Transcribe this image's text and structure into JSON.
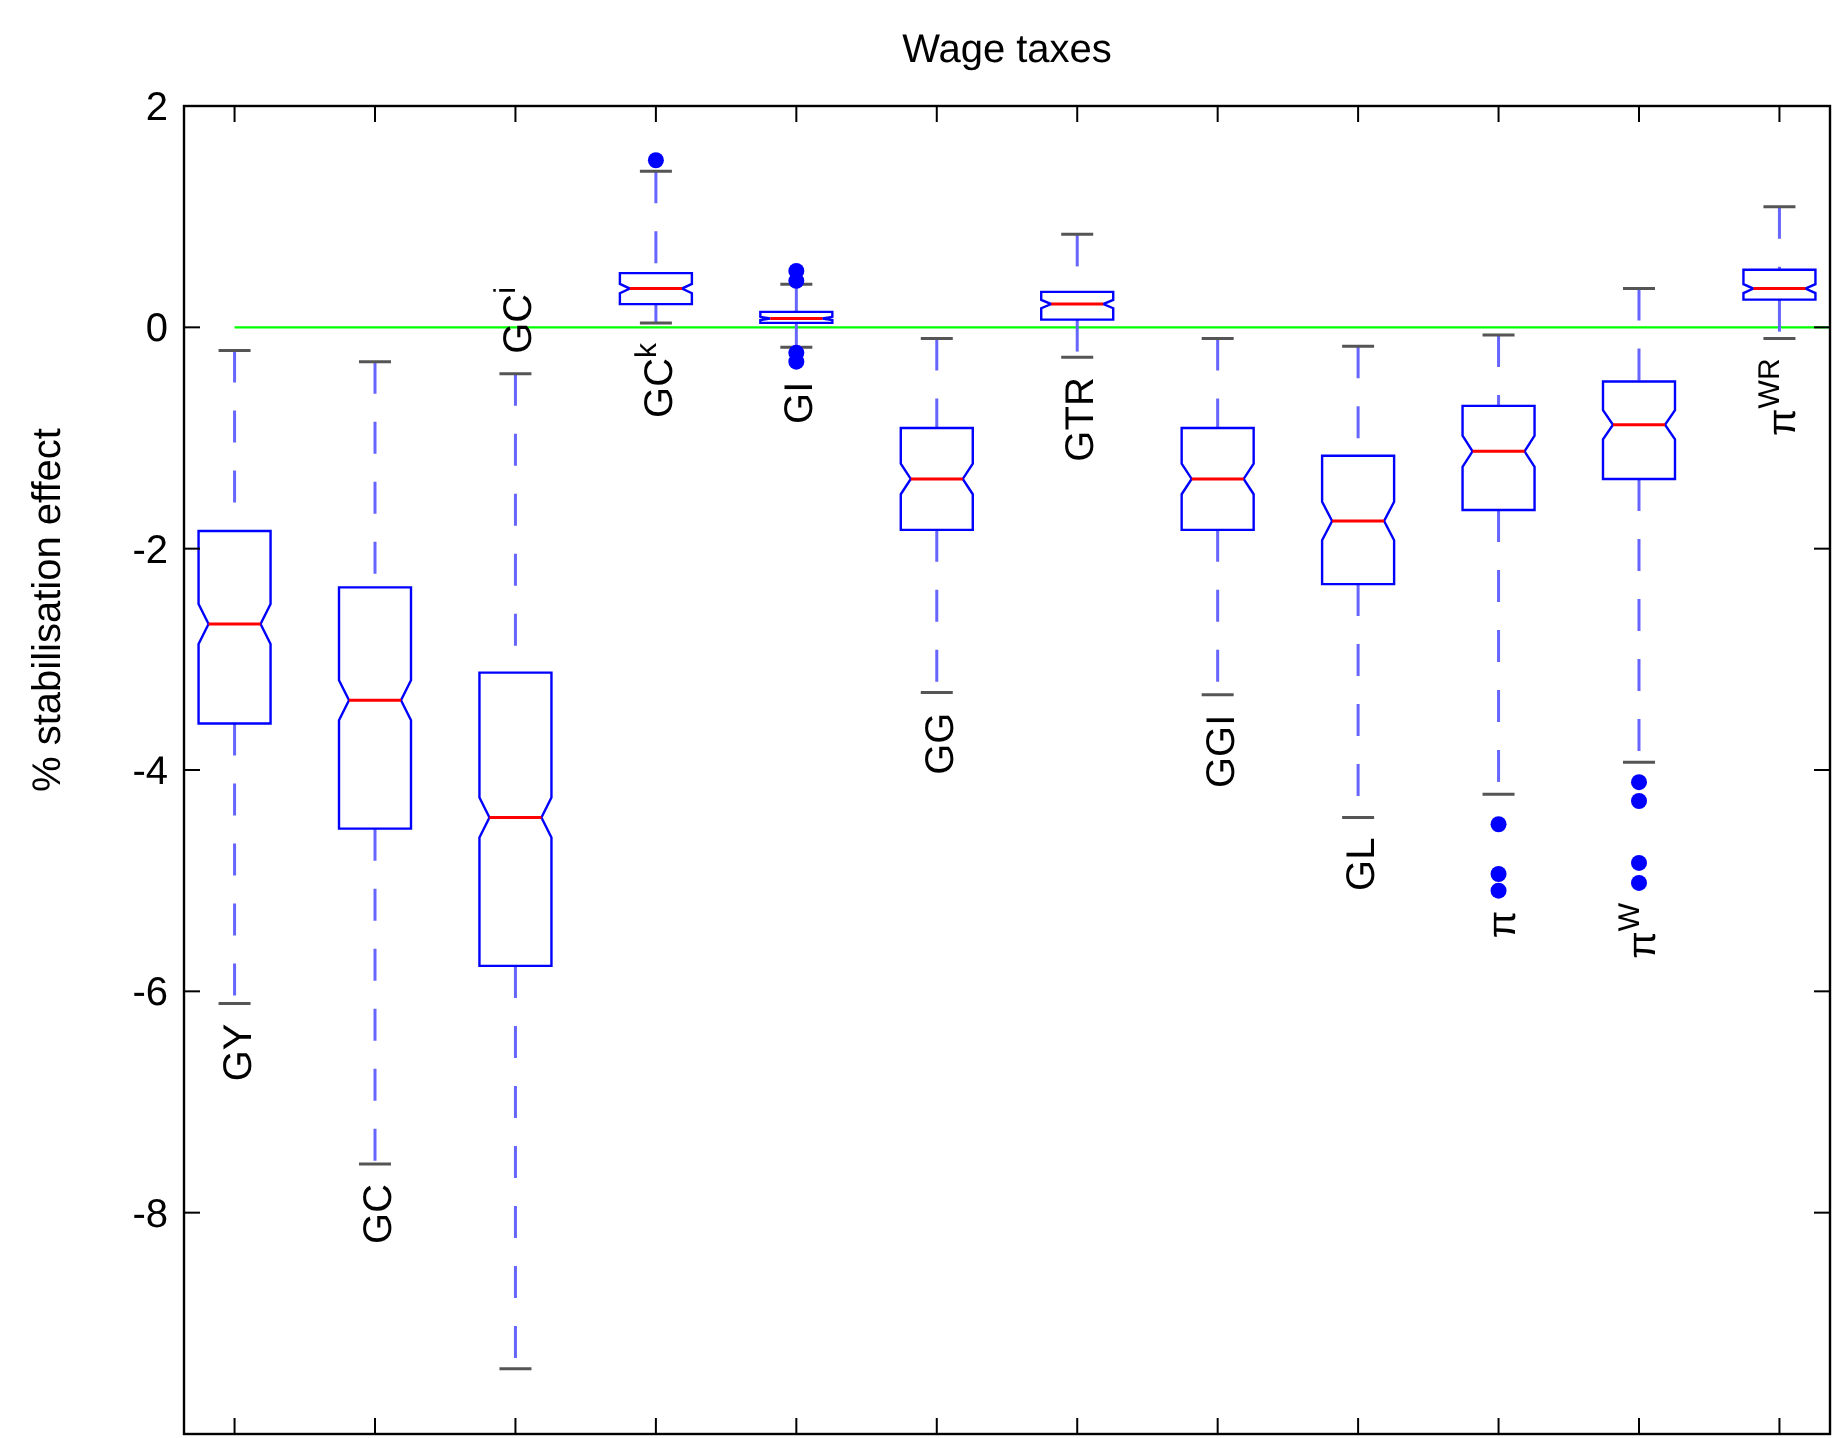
{
  "chart_data": {
    "type": "box",
    "title": "Wage taxes",
    "ylabel": "% stabilisation effect",
    "categories": [
      "GY",
      "GC",
      "GC$^{i}$",
      "GC$^{k}$",
      "GI",
      "GG",
      "GTR",
      "GGI",
      "GL",
      "π",
      "π$^{W}$",
      "π$^{WR}$"
    ],
    "boxes": [
      {
        "low": -6.11,
        "q1": -3.58,
        "median": -2.68,
        "q3": -1.84,
        "high": -0.21
      },
      {
        "low": -7.56,
        "q1": -4.53,
        "median": -3.37,
        "q3": -2.35,
        "high": -0.31
      },
      {
        "low": -9.41,
        "q1": -5.77,
        "median": -4.43,
        "q3": -3.12,
        "high": -0.42
      },
      {
        "low": 0.04,
        "q1": 0.21,
        "median": 0.35,
        "q3": 0.49,
        "high": 1.41,
        "outliers": [
          1.51
        ]
      },
      {
        "low": -0.18,
        "q1": 0.04,
        "median": 0.08,
        "q3": 0.14,
        "high": 0.39,
        "outliers": [
          0.51,
          0.42,
          -0.23,
          -0.31
        ]
      },
      {
        "low": -3.3,
        "q1": -1.83,
        "median": -1.37,
        "q3": -0.91,
        "high": -0.1
      },
      {
        "low": -0.27,
        "q1": 0.07,
        "median": 0.21,
        "q3": 0.32,
        "high": 0.84
      },
      {
        "low": -3.32,
        "q1": -1.83,
        "median": -1.37,
        "q3": -0.91,
        "high": -0.1
      },
      {
        "low": -4.43,
        "q1": -2.32,
        "median": -1.75,
        "q3": -1.16,
        "high": -0.17
      },
      {
        "low": -4.22,
        "q1": -1.65,
        "median": -1.12,
        "q3": -0.71,
        "high": -0.07,
        "outliers": [
          -4.49,
          -4.94,
          -5.09
        ]
      },
      {
        "low": -3.93,
        "q1": -1.37,
        "median": -0.88,
        "q3": -0.49,
        "high": 0.35,
        "outliers": [
          -4.11,
          -4.28,
          -4.84,
          -5.02
        ]
      },
      {
        "low": -0.1,
        "q1": 0.25,
        "median": 0.35,
        "q3": 0.52,
        "high": 1.09
      }
    ],
    "color": "#0000ff",
    "ylim": [
      -10,
      2
    ],
    "yticks": [
      2,
      0,
      -2,
      -4,
      -6,
      -8
    ],
    "ref_lines": [
      {
        "axis": "y",
        "value": 0,
        "color": "#00ff00"
      }
    ],
    "grid": false
  }
}
